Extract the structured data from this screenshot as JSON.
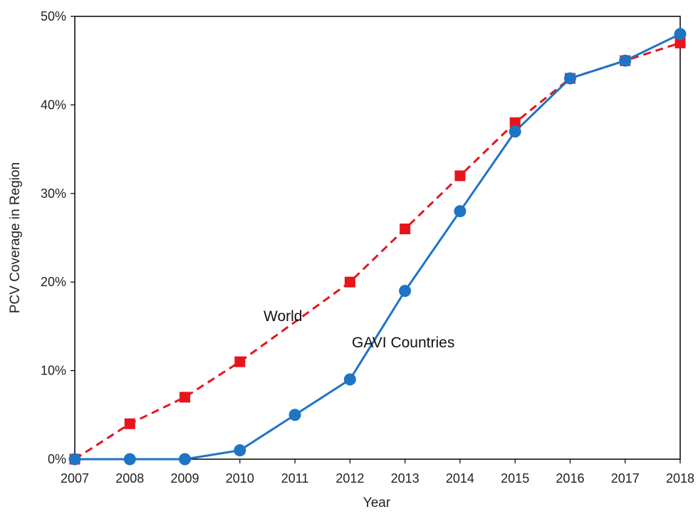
{
  "chart_data": {
    "type": "line",
    "title": "",
    "xlabel": "Year",
    "ylabel": "PCV Coverage in Region",
    "x": [
      "2007",
      "2008",
      "2009",
      "2010",
      "2011",
      "2012",
      "2013",
      "2014",
      "2015",
      "2016",
      "2017",
      "2018"
    ],
    "ylim": [
      0,
      50
    ],
    "yticks": [
      "0%",
      "10%",
      "20%",
      "30%",
      "40%",
      "50%"
    ],
    "grid": false,
    "legend": "none",
    "series": [
      {
        "name": "World",
        "values": [
          0,
          4,
          7,
          11,
          15.5,
          20,
          26,
          32,
          38,
          43,
          45,
          47
        ],
        "color": "#e8141b",
        "line_style": "dashed",
        "marker": "square"
      },
      {
        "name": "GAVI Countries",
        "values": [
          0,
          0,
          0,
          1,
          5,
          9,
          19,
          28,
          37,
          43,
          45,
          48
        ],
        "color": "#1f74c4",
        "line_style": "solid",
        "marker": "circle"
      }
    ],
    "marker_points": {
      "World": [
        0,
        4,
        7,
        11,
        null,
        20,
        26,
        32,
        38,
        43,
        45,
        47
      ],
      "GAVI Countries": [
        0,
        0,
        0,
        1,
        5,
        9,
        19,
        28,
        37,
        43,
        45,
        48
      ]
    },
    "annotations": [
      "World",
      "GAVI Countries"
    ]
  }
}
